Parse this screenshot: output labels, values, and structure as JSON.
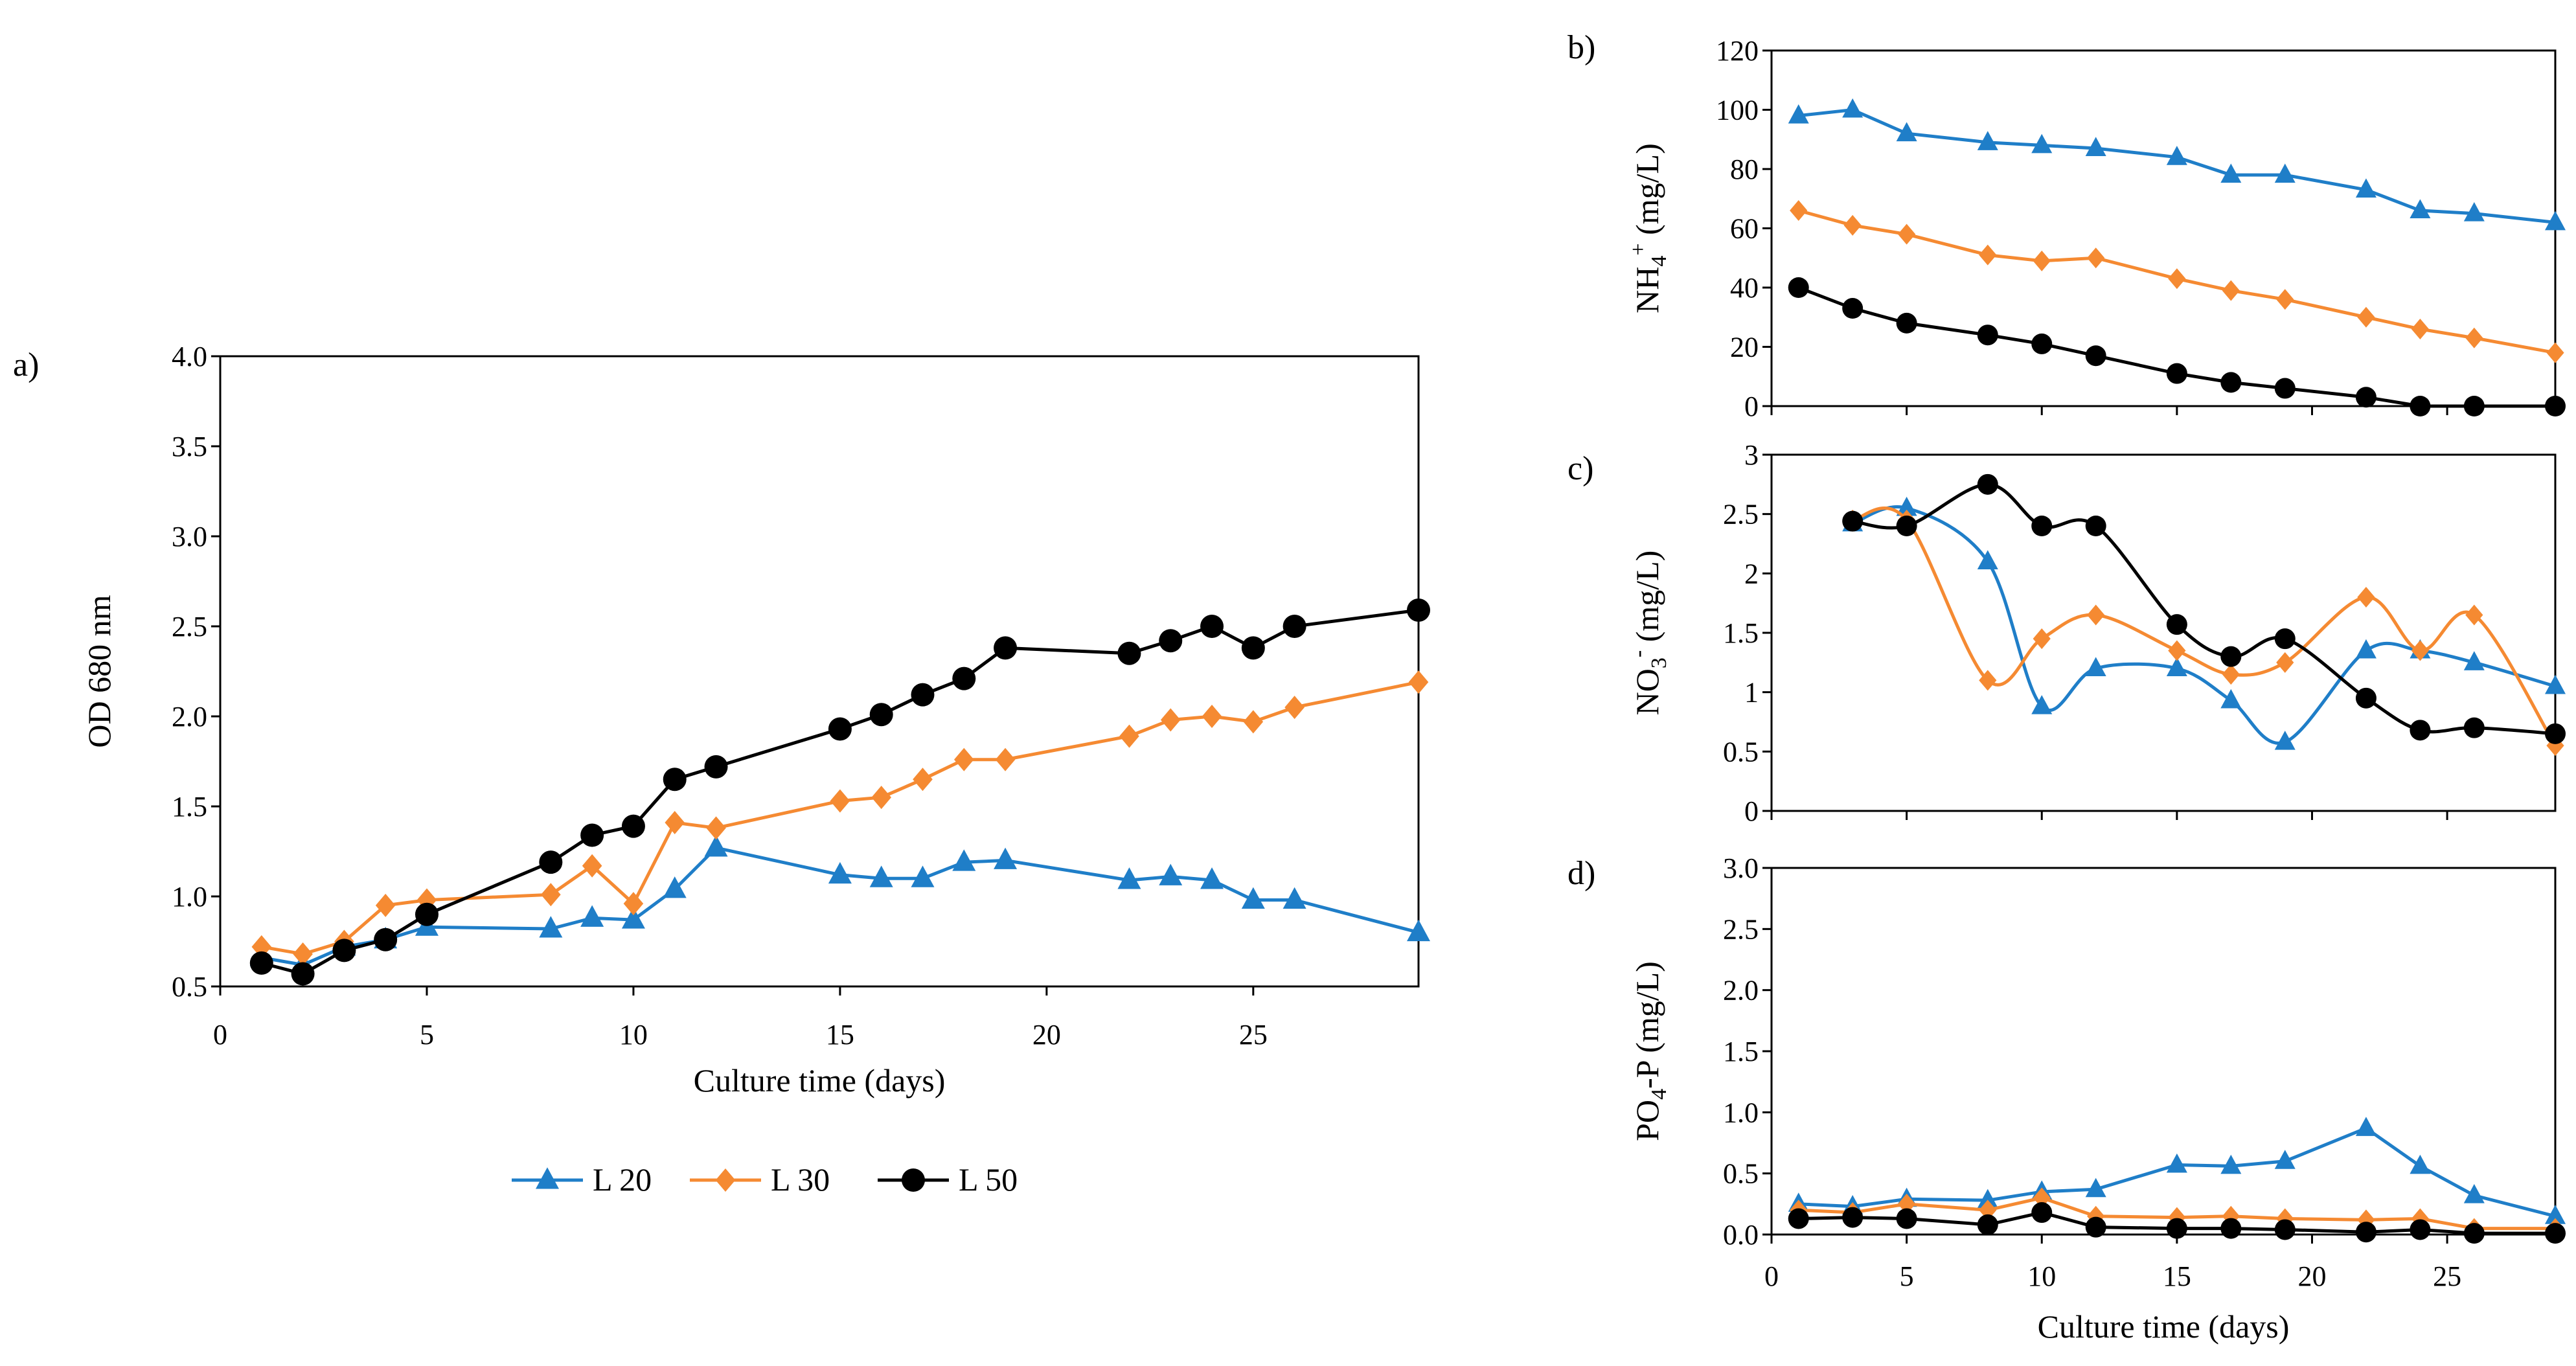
{
  "colors": {
    "L20": "#1f7ec8",
    "L30": "#f58a32",
    "L50": "#000000",
    "axis": "#000000",
    "background": "#ffffff"
  },
  "legend": {
    "items": [
      {
        "name": "L 20",
        "marker": "triangle",
        "color": "#1f7ec8"
      },
      {
        "name": "L 30",
        "marker": "diamond",
        "color": "#f58a32"
      },
      {
        "name": "L 50",
        "marker": "circle",
        "color": "#000000"
      }
    ]
  },
  "chart_data": [
    {
      "id": "a",
      "panel_label": "a)",
      "type": "line",
      "title": "",
      "xlabel": "Culture time (days)",
      "ylabel": "OD 680 nm",
      "xlim": [
        0,
        29
      ],
      "ylim": [
        0.5,
        4.0
      ],
      "xticks": [
        0,
        5,
        10,
        15,
        20,
        25
      ],
      "yticks": [
        0.5,
        1.0,
        1.5,
        2.0,
        2.5,
        3.0,
        3.5,
        4.0
      ],
      "ytick_labels": [
        "0.5",
        "1.0",
        "1.5",
        "2.0",
        "2.5",
        "3.0",
        "3.5",
        "4.0"
      ],
      "x": [
        1,
        2,
        3,
        4,
        5,
        8,
        9,
        10,
        11,
        12,
        15,
        16,
        17,
        18,
        19,
        22,
        23,
        24,
        25,
        26,
        29
      ],
      "series": [
        {
          "name": "L 20",
          "values": [
            0.66,
            0.62,
            0.72,
            0.76,
            0.83,
            0.82,
            0.88,
            0.87,
            1.04,
            1.27,
            1.12,
            1.1,
            1.1,
            1.19,
            1.2,
            1.09,
            1.11,
            1.09,
            0.98,
            0.98,
            0.8
          ]
        },
        {
          "name": "L 30",
          "values": [
            0.72,
            0.68,
            0.75,
            0.95,
            0.98,
            1.01,
            1.17,
            0.96,
            1.41,
            1.38,
            1.53,
            1.55,
            1.65,
            1.76,
            1.76,
            1.89,
            1.98,
            2.0,
            1.97,
            2.05,
            2.19
          ]
        },
        {
          "name": "L 50",
          "values": [
            0.63,
            0.57,
            0.7,
            0.76,
            0.9,
            1.19,
            1.34,
            1.39,
            1.65,
            1.72,
            1.93,
            2.01,
            2.12,
            2.21,
            2.38,
            2.35,
            2.42,
            2.5,
            2.38,
            2.5,
            2.59
          ]
        }
      ]
    },
    {
      "id": "b",
      "panel_label": "b)",
      "type": "line",
      "title": "",
      "xlabel": "",
      "ylabel_main": "NH",
      "ylabel_sub": "4",
      "ylabel_sup": "+",
      "ylabel_unit": " (mg/L)",
      "xlim": [
        0,
        29
      ],
      "ylim": [
        0,
        120
      ],
      "yticks": [
        0,
        20,
        40,
        60,
        80,
        100,
        120
      ],
      "ytick_labels": [
        "0",
        "20",
        "40",
        "60",
        "80",
        "100",
        "120"
      ],
      "x": [
        1,
        3,
        5,
        8,
        10,
        12,
        15,
        17,
        19,
        22,
        24,
        26,
        29
      ],
      "series": [
        {
          "name": "L 20",
          "values": [
            98,
            100,
            92,
            89,
            88,
            87,
            84,
            78,
            78,
            73,
            66,
            65,
            62
          ]
        },
        {
          "name": "L 30",
          "values": [
            66,
            61,
            58,
            51,
            49,
            50,
            43,
            39,
            36,
            30,
            26,
            23,
            18
          ]
        },
        {
          "name": "L 50",
          "values": [
            40,
            33,
            28,
            24,
            21,
            17,
            11,
            8,
            6,
            3,
            0,
            0,
            0
          ]
        }
      ]
    },
    {
      "id": "c",
      "panel_label": "c)",
      "type": "line",
      "title": "",
      "xlabel": "",
      "ylabel_main": "NO",
      "ylabel_sub": "3",
      "ylabel_sup": "-",
      "ylabel_unit": " (mg/L)",
      "xlim": [
        0,
        29
      ],
      "ylim": [
        0,
        3
      ],
      "yticks": [
        0,
        0.5,
        1,
        1.5,
        2,
        2.5,
        3
      ],
      "ytick_labels": [
        "0",
        "0.5",
        "1",
        "1.5",
        "2",
        "2.5",
        "3"
      ],
      "smooth": true,
      "x": [
        3,
        5,
        8,
        10,
        12,
        15,
        17,
        19,
        22,
        24,
        26,
        29
      ],
      "series": [
        {
          "name": "L 20",
          "values": [
            2.42,
            2.55,
            2.1,
            0.88,
            1.2,
            1.2,
            0.93,
            0.58,
            1.35,
            1.35,
            1.25,
            1.05
          ]
        },
        {
          "name": "L 30",
          "values": [
            2.45,
            2.45,
            1.1,
            1.45,
            1.65,
            1.35,
            1.15,
            1.25,
            1.8,
            1.35,
            1.65,
            0.55
          ]
        },
        {
          "name": "L 50",
          "values": [
            2.44,
            2.4,
            2.75,
            2.4,
            2.4,
            1.57,
            1.3,
            1.45,
            0.95,
            0.68,
            0.7,
            0.65
          ]
        }
      ]
    },
    {
      "id": "d",
      "panel_label": "d)",
      "type": "line",
      "title": "",
      "xlabel": "Culture time (days)",
      "ylabel_main": "PO",
      "ylabel_sub": "4",
      "ylabel_sup": "",
      "ylabel_unit": "-P (mg/L)",
      "xlim": [
        0,
        29
      ],
      "ylim": [
        0,
        3.0
      ],
      "xticks": [
        0,
        5,
        10,
        15,
        20,
        25
      ],
      "yticks": [
        0,
        0.5,
        1.0,
        1.5,
        2.0,
        2.5,
        3.0
      ],
      "ytick_labels": [
        "0.0",
        "0.5",
        "1.0",
        "1.5",
        "2.0",
        "2.5",
        "3.0"
      ],
      "x": [
        1,
        3,
        5,
        8,
        10,
        12,
        15,
        17,
        19,
        22,
        24,
        26,
        29
      ],
      "series": [
        {
          "name": "L 20",
          "values": [
            0.25,
            0.23,
            0.29,
            0.28,
            0.35,
            0.37,
            0.57,
            0.56,
            0.6,
            0.87,
            0.56,
            0.32,
            0.15
          ]
        },
        {
          "name": "L 30",
          "values": [
            0.2,
            0.18,
            0.25,
            0.2,
            0.3,
            0.15,
            0.14,
            0.15,
            0.13,
            0.12,
            0.13,
            0.05,
            0.05
          ]
        },
        {
          "name": "L 50",
          "values": [
            0.13,
            0.14,
            0.13,
            0.08,
            0.18,
            0.06,
            0.05,
            0.05,
            0.04,
            0.02,
            0.04,
            0.01,
            0.01
          ]
        }
      ]
    }
  ]
}
